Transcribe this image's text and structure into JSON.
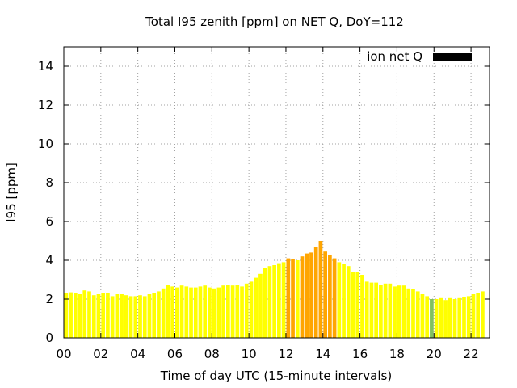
{
  "chart_data": {
    "type": "bar",
    "title": "Total I95 zenith [ppm] on NET Q, DoY=112",
    "xlabel": "Time of day UTC (15-minute intervals)",
    "ylabel": "I95 [ppm]",
    "xlim": [
      0,
      23
    ],
    "ylim": [
      0,
      15
    ],
    "x_ticks": [
      0,
      2,
      4,
      6,
      8,
      10,
      12,
      14,
      16,
      18,
      20,
      22
    ],
    "x_tick_labels": [
      "00",
      "02",
      "04",
      "06",
      "08",
      "10",
      "12",
      "14",
      "16",
      "18",
      "20",
      "22"
    ],
    "y_ticks": [
      0,
      2,
      4,
      6,
      8,
      10,
      12,
      14
    ],
    "y_tick_labels": [
      "0",
      "2",
      "4",
      "6",
      "8",
      "10",
      "12",
      "14"
    ],
    "grid": true,
    "interval_hours": 0.25,
    "legend": {
      "position": "top-right",
      "label": "ion net Q",
      "color": "#000000"
    },
    "colors": {
      "low": "#ffff00",
      "mid": "#f0f020",
      "high": "#ffa500",
      "missing": "#80c060"
    },
    "series": [
      {
        "values": [
          2.3,
          2.35,
          2.3,
          2.25,
          2.45,
          2.4,
          2.2,
          2.25,
          2.3,
          2.3,
          2.15,
          2.25,
          2.25,
          2.2,
          2.15,
          2.15,
          2.2,
          2.15,
          2.25,
          2.3,
          2.4,
          2.55,
          2.75,
          2.65,
          2.6,
          2.7,
          2.65,
          2.6,
          2.6,
          2.65,
          2.7,
          2.6,
          2.55,
          2.6,
          2.7,
          2.75,
          2.7,
          2.75,
          2.65,
          2.8,
          2.9,
          3.1,
          3.3,
          3.6,
          3.7,
          3.75,
          3.85,
          3.9,
          4.1,
          4.05,
          4.0,
          4.2,
          4.35,
          4.4,
          4.7,
          5.0,
          4.45,
          4.25,
          4.1,
          3.9,
          3.8,
          3.7,
          3.4,
          3.4,
          3.25,
          2.9,
          2.85,
          2.85,
          2.75,
          2.8,
          2.8,
          2.65,
          2.7,
          2.7,
          2.55,
          2.5,
          2.4,
          2.25,
          2.15,
          2.0,
          2.0,
          2.05,
          1.95,
          2.05,
          2.0,
          2.05,
          2.1,
          2.15,
          2.25,
          2.3,
          2.4
        ],
        "color_levels": [
          "low",
          "low",
          "low",
          "low",
          "low",
          "low",
          "low",
          "low",
          "low",
          "low",
          "low",
          "low",
          "low",
          "low",
          "low",
          "low",
          "low",
          "low",
          "low",
          "low",
          "low",
          "low",
          "low",
          "low",
          "low",
          "low",
          "low",
          "low",
          "low",
          "low",
          "low",
          "low",
          "low",
          "low",
          "low",
          "low",
          "low",
          "low",
          "low",
          "low",
          "low",
          "low",
          "low",
          "low",
          "low",
          "low",
          "low",
          "low",
          "high",
          "high",
          "low",
          "high",
          "high",
          "high",
          "high",
          "high",
          "high",
          "high",
          "high",
          "low",
          "low",
          "low",
          "low",
          "low",
          "low",
          "low",
          "low",
          "low",
          "low",
          "low",
          "low",
          "low",
          "low",
          "low",
          "low",
          "low",
          "low",
          "low",
          "low",
          "missing",
          "low",
          "low",
          "low",
          "low",
          "low",
          "low",
          "low",
          "low",
          "low",
          "low",
          "low"
        ]
      }
    ]
  }
}
